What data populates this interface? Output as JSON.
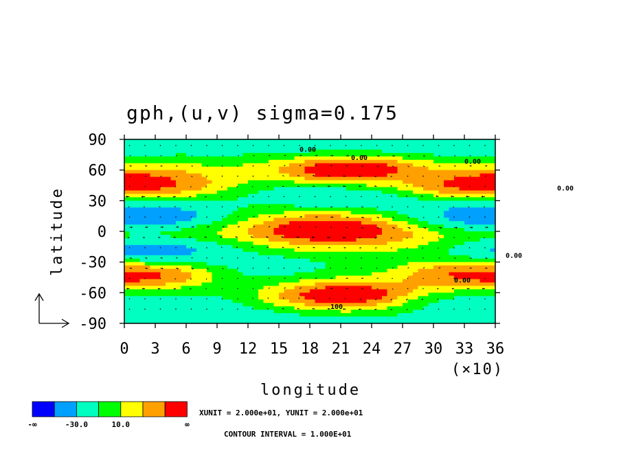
{
  "chart_data": {
    "type": "heatmap",
    "title": "gph,(u,v) sigma=0.175",
    "xlabel": "longitude",
    "ylabel": "latitude",
    "x_multiplier_label": "(×10)",
    "xticks": [
      0,
      3,
      6,
      9,
      12,
      15,
      18,
      21,
      24,
      27,
      30,
      33,
      36
    ],
    "yticks": [
      90,
      60,
      30,
      0,
      -30,
      -60,
      -90
    ],
    "xlim": [
      0,
      36
    ],
    "ylim": [
      -90,
      90
    ],
    "grid": false,
    "vector_overlay": true,
    "contour_labels": [
      "0.00",
      "0.00",
      "0.00",
      "0.00",
      "0.00",
      "0.00",
      "100"
    ],
    "anomaly_centers": [
      {
        "lon": 22,
        "lat": 60,
        "level": 7
      },
      {
        "lon": 22,
        "lat": -63,
        "level": 7
      },
      {
        "lon": 20,
        "lat": 2,
        "level": 7
      },
      {
        "lon": 1,
        "lat": 47,
        "level": 6
      },
      {
        "lon": 35,
        "lat": 45,
        "level": 6
      },
      {
        "lon": 0,
        "lat": -42,
        "level": 6
      },
      {
        "lon": 36,
        "lat": -42,
        "level": 6
      },
      {
        "lon": 3,
        "lat": 15,
        "level": 1
      },
      {
        "lon": 35,
        "lat": 15,
        "level": 1
      },
      {
        "lon": 3,
        "lat": -18,
        "level": 1
      },
      {
        "lon": 34,
        "lat": -72,
        "level": 2
      }
    ],
    "colorbar": {
      "colors": [
        "#0000ff",
        "#00a0ff",
        "#00ffc0",
        "#00ff00",
        "#ffff00",
        "#ffa000",
        "#ff0000"
      ],
      "labels": [
        "-∞",
        "-30.0",
        "10.0",
        "∞"
      ]
    },
    "units_text": "XUNIT = 2.000e+01, YUNIT = 2.000e+01",
    "contour_interval_text": "CONTOUR INTERVAL = 1.000E+01"
  }
}
